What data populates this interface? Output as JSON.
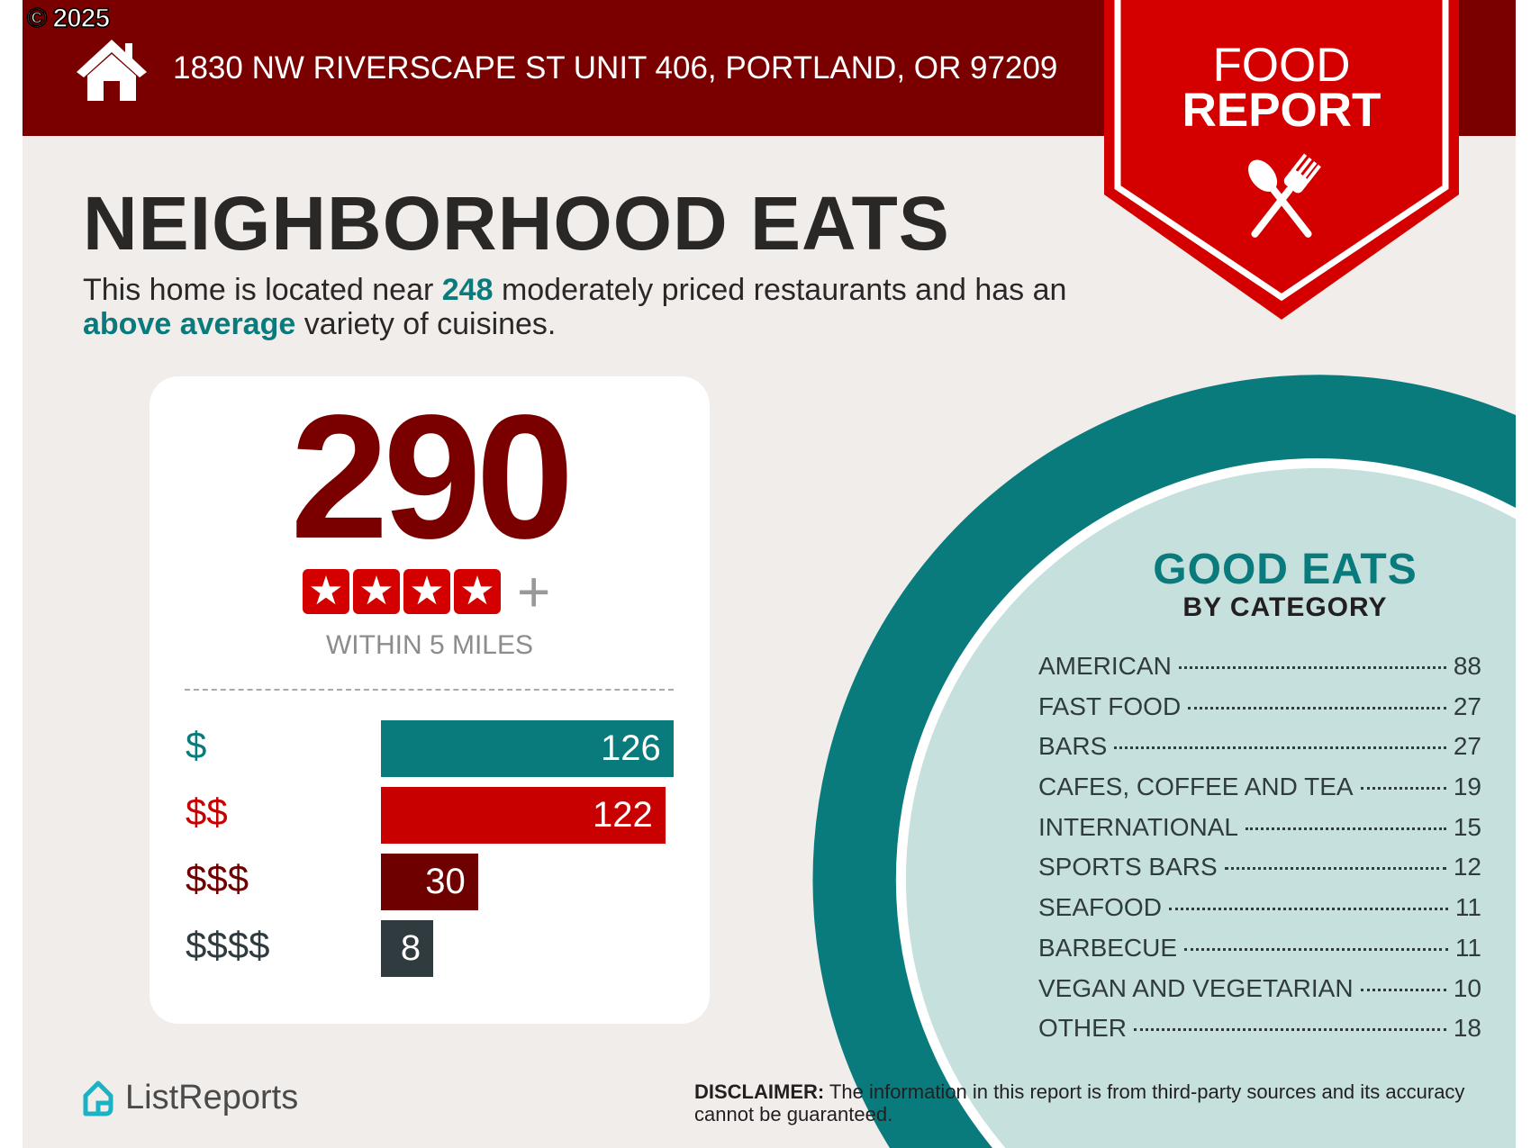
{
  "header": {
    "copyright": "© 2025",
    "address": "1830 NW RIVERSCAPE ST UNIT 406, PORTLAND, OR 97209",
    "badge_line1": "FOOD",
    "badge_line2": "REPORT",
    "home_icon": "house-icon",
    "badge_icon": "spoon-fork-icon"
  },
  "title": "NEIGHBORHOOD EATS",
  "intro": {
    "part1": "This home is located near ",
    "count": "248",
    "part2": " moderately priced restaurants and has an ",
    "variety": "above average",
    "part3": " variety of cuisines."
  },
  "summary": {
    "total": "290",
    "stars": 4,
    "star_icon": "star-icon",
    "plus": "+",
    "radius_label": "WITHIN 5 MILES"
  },
  "price_tiers": [
    {
      "label": "$",
      "value": 126,
      "color": "#0a7b7d"
    },
    {
      "label": "$$",
      "value": 122,
      "color": "#c90000"
    },
    {
      "label": "$$$",
      "value": 30,
      "color": "#6f0000"
    },
    {
      "label": "$$$$",
      "value": 8,
      "color": "#2f3b3e"
    }
  ],
  "categories": {
    "title": "GOOD EATS",
    "subtitle": "BY CATEGORY",
    "items": [
      {
        "name": "AMERICAN",
        "count": "88"
      },
      {
        "name": "FAST FOOD",
        "count": "27"
      },
      {
        "name": "BARS",
        "count": "27"
      },
      {
        "name": "CAFES, COFFEE AND TEA",
        "count": "19"
      },
      {
        "name": "INTERNATIONAL",
        "count": "15"
      },
      {
        "name": "SPORTS BARS",
        "count": "12"
      },
      {
        "name": "SEAFOOD",
        "count": "11"
      },
      {
        "name": "BARBECUE",
        "count": "11"
      },
      {
        "name": "VEGAN AND VEGETARIAN",
        "count": "10"
      },
      {
        "name": "OTHER",
        "count": "18"
      }
    ]
  },
  "footer": {
    "logo_text": "ListReports",
    "disclaimer_label": "DISCLAIMER:",
    "disclaimer_text": " The information in this report is from third-party sources and its accuracy cannot be guaranteed."
  },
  "colors": {
    "header": "#7a0000",
    "badge": "#d40000",
    "teal": "#0a7b7d",
    "circle_fill": "#c6e0de",
    "background": "#f1edea"
  }
}
